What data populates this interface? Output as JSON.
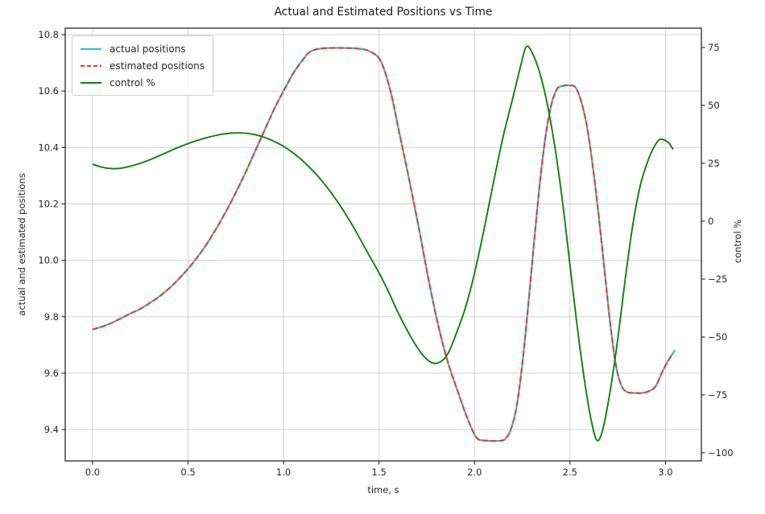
{
  "chart_data": {
    "type": "line",
    "title": "Actual and Estimated Positions vs Time",
    "xlabel": "time, s",
    "ylabel": "actual and estimated positions",
    "ylabel_right": "control %",
    "grid": true,
    "legend_position": "upper left",
    "background_color": "#ffffff",
    "grid_color": "#cccccc",
    "spine_color": "#262626",
    "text_color": "#262626",
    "xlim": [
      -0.143,
      3.188
    ],
    "ylim_left": [
      9.289,
      10.823
    ],
    "ylim_right": [
      -103.5,
      83.33
    ],
    "x_ticks": [
      0.0,
      0.5,
      1.0,
      1.5,
      2.0,
      2.5,
      3.0
    ],
    "x_tick_labels": [
      "0.0",
      "0.5",
      "1.0",
      "1.5",
      "2.0",
      "2.5",
      "3.0"
    ],
    "y_ticks_left": [
      9.4,
      9.6,
      9.8,
      10.0,
      10.2,
      10.4,
      10.6,
      10.8
    ],
    "y_tick_labels_left": [
      "9.4",
      "9.6",
      "9.8",
      "10.0",
      "10.2",
      "10.4",
      "10.6",
      "10.8"
    ],
    "y_ticks_right": [
      75,
      50,
      25,
      0,
      -25,
      -50,
      -75,
      -100
    ],
    "y_tick_labels_right": [
      "75",
      "50",
      "25",
      "0",
      "−25",
      "−50",
      "−75",
      "−100"
    ],
    "series": [
      {
        "name": "actual positions",
        "axis": "left",
        "color": "#2cc3d2",
        "style": "solid",
        "width": 2.3,
        "points": [
          [
            0.0,
            9.755
          ],
          [
            0.05,
            9.765
          ],
          [
            0.1,
            9.778
          ],
          [
            0.15,
            9.795
          ],
          [
            0.2,
            9.812
          ],
          [
            0.25,
            9.828
          ],
          [
            0.3,
            9.849
          ],
          [
            0.35,
            9.872
          ],
          [
            0.4,
            9.9
          ],
          [
            0.45,
            9.933
          ],
          [
            0.5,
            9.97
          ],
          [
            0.55,
            10.012
          ],
          [
            0.6,
            10.06
          ],
          [
            0.65,
            10.115
          ],
          [
            0.7,
            10.175
          ],
          [
            0.75,
            10.24
          ],
          [
            0.8,
            10.31
          ],
          [
            0.85,
            10.385
          ],
          [
            0.9,
            10.46
          ],
          [
            0.95,
            10.535
          ],
          [
            1.0,
            10.6
          ],
          [
            1.05,
            10.662
          ],
          [
            1.1,
            10.71
          ],
          [
            1.14,
            10.74
          ],
          [
            1.2,
            10.751
          ],
          [
            1.3,
            10.753
          ],
          [
            1.4,
            10.75
          ],
          [
            1.46,
            10.738
          ],
          [
            1.51,
            10.705
          ],
          [
            1.56,
            10.6
          ],
          [
            1.61,
            10.44
          ],
          [
            1.66,
            10.28
          ],
          [
            1.71,
            10.11
          ],
          [
            1.76,
            9.93
          ],
          [
            1.81,
            9.77
          ],
          [
            1.86,
            9.64
          ],
          [
            1.91,
            9.54
          ],
          [
            1.96,
            9.445
          ],
          [
            2.01,
            9.372
          ],
          [
            2.06,
            9.361
          ],
          [
            2.12,
            9.36
          ],
          [
            2.16,
            9.366
          ],
          [
            2.19,
            9.4
          ],
          [
            2.22,
            9.48
          ],
          [
            2.25,
            9.63
          ],
          [
            2.28,
            9.83
          ],
          [
            2.31,
            10.05
          ],
          [
            2.34,
            10.26
          ],
          [
            2.37,
            10.43
          ],
          [
            2.4,
            10.545
          ],
          [
            2.43,
            10.605
          ],
          [
            2.46,
            10.618
          ],
          [
            2.5,
            10.62
          ],
          [
            2.53,
            10.612
          ],
          [
            2.56,
            10.56
          ],
          [
            2.59,
            10.47
          ],
          [
            2.62,
            10.33
          ],
          [
            2.65,
            10.16
          ],
          [
            2.68,
            9.97
          ],
          [
            2.71,
            9.78
          ],
          [
            2.74,
            9.63
          ],
          [
            2.77,
            9.555
          ],
          [
            2.8,
            9.533
          ],
          [
            2.84,
            9.53
          ],
          [
            2.88,
            9.53
          ],
          [
            2.92,
            9.538
          ],
          [
            2.95,
            9.555
          ],
          [
            2.98,
            9.6
          ],
          [
            3.01,
            9.64
          ],
          [
            3.05,
            9.682
          ]
        ]
      },
      {
        "name": "estimated positions",
        "axis": "left",
        "color": "#ee3a2c",
        "style": "dashed",
        "width": 2.0,
        "points": [
          [
            0.0,
            9.755
          ],
          [
            0.05,
            9.765
          ],
          [
            0.1,
            9.778
          ],
          [
            0.15,
            9.795
          ],
          [
            0.2,
            9.812
          ],
          [
            0.25,
            9.828
          ],
          [
            0.3,
            9.849
          ],
          [
            0.35,
            9.872
          ],
          [
            0.4,
            9.9
          ],
          [
            0.45,
            9.933
          ],
          [
            0.5,
            9.97
          ],
          [
            0.55,
            10.012
          ],
          [
            0.6,
            10.06
          ],
          [
            0.65,
            10.115
          ],
          [
            0.7,
            10.175
          ],
          [
            0.75,
            10.24
          ],
          [
            0.8,
            10.31
          ],
          [
            0.85,
            10.385
          ],
          [
            0.9,
            10.46
          ],
          [
            0.95,
            10.535
          ],
          [
            1.0,
            10.6
          ],
          [
            1.05,
            10.662
          ],
          [
            1.1,
            10.71
          ],
          [
            1.14,
            10.74
          ],
          [
            1.2,
            10.751
          ],
          [
            1.3,
            10.753
          ],
          [
            1.4,
            10.75
          ],
          [
            1.46,
            10.738
          ],
          [
            1.51,
            10.705
          ],
          [
            1.56,
            10.6
          ],
          [
            1.61,
            10.44
          ],
          [
            1.66,
            10.28
          ],
          [
            1.71,
            10.11
          ],
          [
            1.76,
            9.93
          ],
          [
            1.81,
            9.77
          ],
          [
            1.86,
            9.64
          ],
          [
            1.91,
            9.54
          ],
          [
            1.96,
            9.445
          ],
          [
            2.01,
            9.372
          ],
          [
            2.06,
            9.361
          ],
          [
            2.12,
            9.36
          ],
          [
            2.16,
            9.366
          ],
          [
            2.19,
            9.4
          ],
          [
            2.22,
            9.48
          ],
          [
            2.25,
            9.63
          ],
          [
            2.28,
            9.83
          ],
          [
            2.31,
            10.05
          ],
          [
            2.34,
            10.26
          ],
          [
            2.37,
            10.43
          ],
          [
            2.4,
            10.545
          ],
          [
            2.43,
            10.605
          ],
          [
            2.46,
            10.618
          ],
          [
            2.5,
            10.62
          ],
          [
            2.53,
            10.612
          ],
          [
            2.56,
            10.56
          ],
          [
            2.59,
            10.47
          ],
          [
            2.62,
            10.33
          ],
          [
            2.65,
            10.16
          ],
          [
            2.68,
            9.97
          ],
          [
            2.71,
            9.78
          ],
          [
            2.74,
            9.63
          ],
          [
            2.77,
            9.555
          ],
          [
            2.8,
            9.533
          ],
          [
            2.84,
            9.53
          ],
          [
            2.88,
            9.53
          ],
          [
            2.92,
            9.538
          ],
          [
            2.95,
            9.555
          ],
          [
            2.98,
            9.6
          ],
          [
            3.01,
            9.64
          ],
          [
            3.04,
            9.67
          ]
        ]
      },
      {
        "name": "control %",
        "axis": "right",
        "color": "#0f7f11",
        "style": "solid",
        "width": 1.9,
        "points": [
          [
            0.0,
            24.6
          ],
          [
            0.05,
            23.3
          ],
          [
            0.1,
            22.7
          ],
          [
            0.15,
            22.9
          ],
          [
            0.2,
            23.8
          ],
          [
            0.25,
            25.0
          ],
          [
            0.3,
            26.5
          ],
          [
            0.35,
            28.3
          ],
          [
            0.4,
            30.1
          ],
          [
            0.45,
            31.9
          ],
          [
            0.5,
            33.5
          ],
          [
            0.55,
            34.9
          ],
          [
            0.6,
            36.1
          ],
          [
            0.65,
            37.1
          ],
          [
            0.7,
            37.8
          ],
          [
            0.75,
            38.1
          ],
          [
            0.8,
            38.0
          ],
          [
            0.85,
            37.4
          ],
          [
            0.9,
            36.2
          ],
          [
            0.95,
            34.5
          ],
          [
            1.0,
            32.3
          ],
          [
            1.05,
            29.5
          ],
          [
            1.1,
            26.1
          ],
          [
            1.15,
            22.1
          ],
          [
            1.2,
            17.5
          ],
          [
            1.25,
            12.2
          ],
          [
            1.3,
            6.3
          ],
          [
            1.35,
            -0.3
          ],
          [
            1.4,
            -7.5
          ],
          [
            1.45,
            -15.0
          ],
          [
            1.5,
            -22.3
          ],
          [
            1.55,
            -30.5
          ],
          [
            1.6,
            -39.5
          ],
          [
            1.65,
            -47.5
          ],
          [
            1.7,
            -54.5
          ],
          [
            1.74,
            -58.8
          ],
          [
            1.78,
            -61.2
          ],
          [
            1.82,
            -60.8
          ],
          [
            1.86,
            -57.3
          ],
          [
            1.9,
            -49.5
          ],
          [
            1.95,
            -38.0
          ],
          [
            2.0,
            -22.5
          ],
          [
            2.05,
            -3.5
          ],
          [
            2.1,
            17.0
          ],
          [
            2.15,
            36.5
          ],
          [
            2.2,
            53.0
          ],
          [
            2.24,
            66.5
          ],
          [
            2.27,
            75.2
          ],
          [
            2.3,
            73.0
          ],
          [
            2.34,
            64.5
          ],
          [
            2.38,
            51.0
          ],
          [
            2.42,
            32.5
          ],
          [
            2.46,
            9.0
          ],
          [
            2.5,
            -19.0
          ],
          [
            2.54,
            -47.0
          ],
          [
            2.58,
            -71.0
          ],
          [
            2.61,
            -85.5
          ],
          [
            2.64,
            -94.5
          ],
          [
            2.67,
            -90.5
          ],
          [
            2.71,
            -73.5
          ],
          [
            2.75,
            -51.0
          ],
          [
            2.79,
            -24.5
          ],
          [
            2.83,
            -1.0
          ],
          [
            2.87,
            16.0
          ],
          [
            2.91,
            26.5
          ],
          [
            2.94,
            32.0
          ],
          [
            2.97,
            35.3
          ],
          [
            3.0,
            34.8
          ],
          [
            3.02,
            33.5
          ],
          [
            3.04,
            31.0
          ]
        ]
      }
    ]
  }
}
